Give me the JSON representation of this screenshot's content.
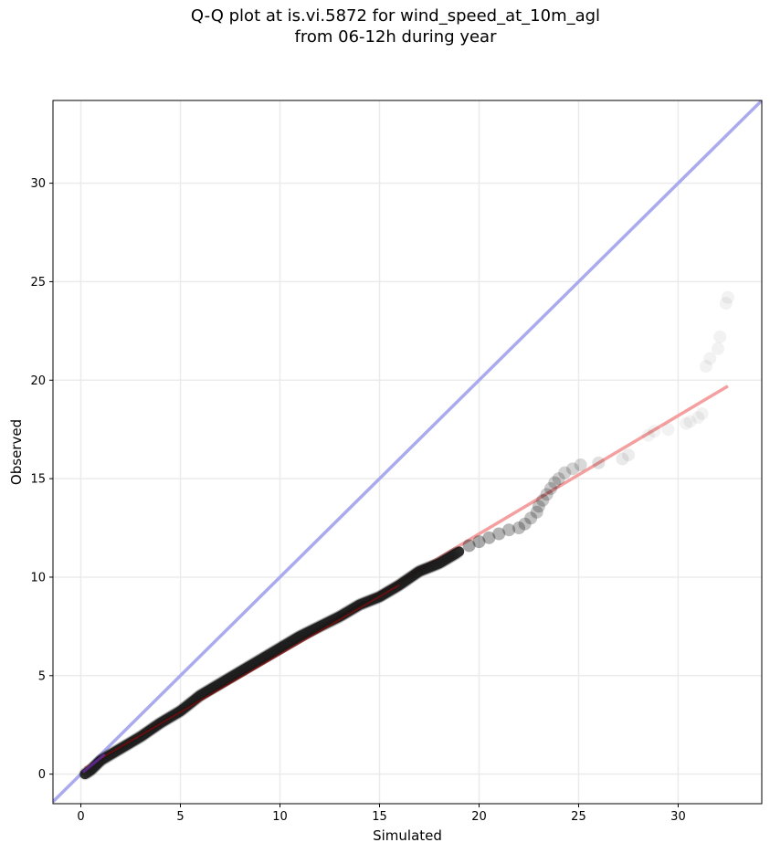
{
  "chart_data": {
    "type": "scatter",
    "title_lines": [
      "Q-Q plot at is.vi.5872 for wind_speed_at_10m_agl",
      "from 06-12h during year"
    ],
    "xlabel": "Simulated",
    "ylabel": "Observed",
    "xlim": [
      -1.4,
      34.2
    ],
    "ylim": [
      -1.5,
      34.2
    ],
    "xticks": [
      0,
      5,
      10,
      15,
      20,
      25,
      30
    ],
    "yticks": [
      0,
      5,
      10,
      15,
      20,
      25,
      30
    ],
    "grid": true,
    "reference_line": {
      "name": "1:1",
      "color": "#aaaaee",
      "from": [
        -1.4,
        -1.4
      ],
      "to": [
        34.2,
        34.2
      ]
    },
    "fit_line": {
      "color": "#f4a0a0",
      "from": [
        0.2,
        0.3
      ],
      "to": [
        32.5,
        19.7
      ]
    },
    "point_color": "#000000",
    "dense_curve": [
      [
        0.2,
        0.0
      ],
      [
        0.5,
        0.2
      ],
      [
        1.0,
        0.7
      ],
      [
        1.5,
        1.0
      ],
      [
        2.0,
        1.3
      ],
      [
        2.5,
        1.6
      ],
      [
        3.0,
        1.9
      ],
      [
        4.0,
        2.6
      ],
      [
        5.0,
        3.2
      ],
      [
        6.0,
        4.0
      ],
      [
        7.0,
        4.6
      ],
      [
        8.0,
        5.2
      ],
      [
        9.0,
        5.8
      ],
      [
        10.0,
        6.4
      ],
      [
        11.0,
        7.0
      ],
      [
        12.0,
        7.5
      ],
      [
        13.0,
        8.0
      ],
      [
        14.0,
        8.6
      ],
      [
        15.0,
        9.0
      ],
      [
        16.0,
        9.6
      ],
      [
        17.0,
        10.3
      ],
      [
        18.0,
        10.7
      ],
      [
        19.0,
        11.3
      ]
    ],
    "tail_points": [
      [
        19.5,
        11.6
      ],
      [
        20.0,
        11.8
      ],
      [
        20.5,
        12.0
      ],
      [
        21.0,
        12.2
      ],
      [
        21.5,
        12.4
      ],
      [
        22.0,
        12.5
      ],
      [
        22.3,
        12.7
      ],
      [
        22.6,
        13.0
      ],
      [
        22.9,
        13.3
      ],
      [
        23.0,
        13.6
      ],
      [
        23.2,
        13.9
      ],
      [
        23.4,
        14.2
      ],
      [
        23.6,
        14.5
      ],
      [
        23.8,
        14.8
      ],
      [
        24.0,
        15.0
      ],
      [
        24.3,
        15.3
      ],
      [
        24.7,
        15.5
      ],
      [
        25.1,
        15.7
      ],
      [
        26.0,
        15.8
      ],
      [
        27.2,
        16.0
      ],
      [
        27.5,
        16.2
      ],
      [
        28.5,
        17.2
      ],
      [
        28.8,
        17.4
      ],
      [
        29.5,
        17.5
      ],
      [
        30.4,
        17.8
      ],
      [
        30.6,
        17.9
      ],
      [
        31.0,
        18.1
      ],
      [
        31.2,
        18.3
      ],
      [
        31.4,
        20.7
      ],
      [
        31.6,
        21.1
      ],
      [
        32.0,
        21.6
      ],
      [
        32.1,
        22.2
      ],
      [
        32.4,
        23.9
      ],
      [
        32.5,
        24.2
      ]
    ]
  }
}
